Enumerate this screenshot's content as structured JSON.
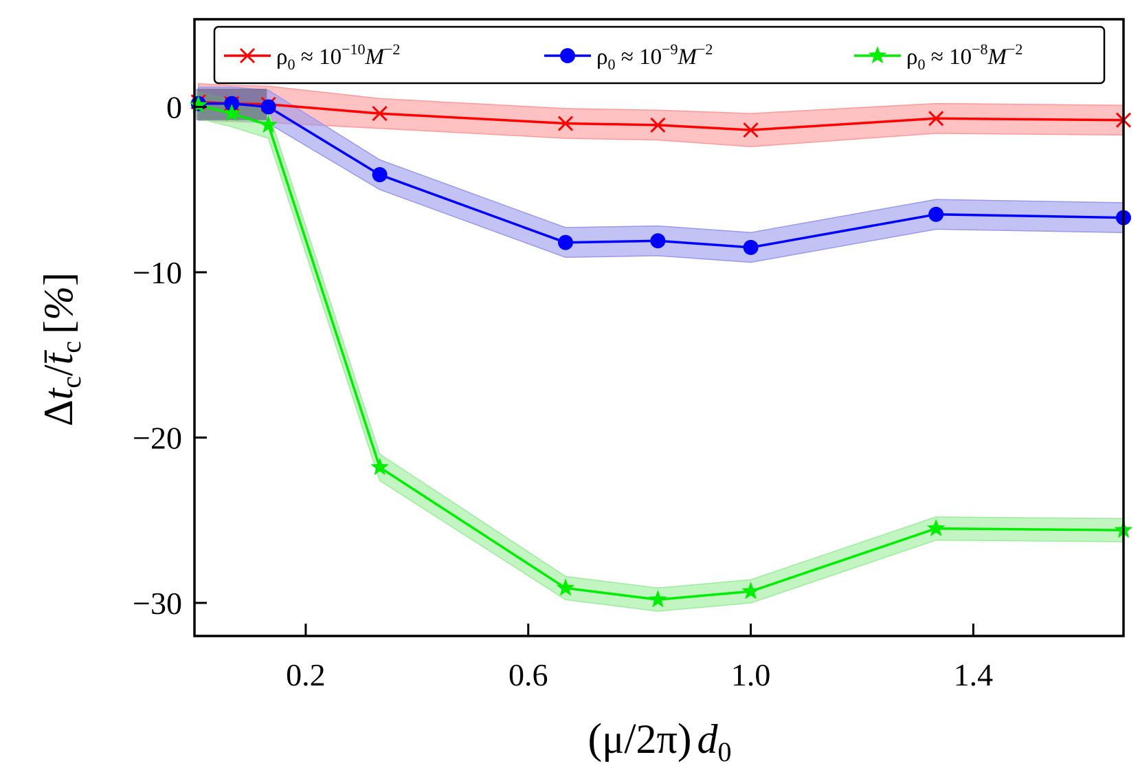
{
  "chart_data": {
    "type": "line",
    "xlabel": "(μ/2π) d₀",
    "ylabel": "Δt_c / t̄_c [%]",
    "xlim": [
      0.0,
      1.67
    ],
    "ylim": [
      -32,
      5.3
    ],
    "xticks": [
      0.2,
      0.6,
      1.0,
      1.4
    ],
    "xtick_labels": [
      "0.2",
      "0.6",
      "1.0",
      "1.4"
    ],
    "yticks": [
      0,
      -10,
      -20,
      -30
    ],
    "ytick_labels": [
      "0",
      "−10",
      "−20",
      "−30"
    ],
    "grid": false,
    "legend_placement": "top, single row, framed",
    "x": [
      0.007,
      0.067,
      0.133,
      0.333,
      0.667,
      0.833,
      1.0,
      1.333,
      1.67
    ],
    "series": [
      {
        "name": "ρ₀ ≈ 10⁻¹⁰ M⁻²",
        "name_base": "ρ",
        "name_sub": "0",
        "name_mid": " ≈ 10",
        "name_exp": "−10",
        "name_unit": "M",
        "name_unit_exp": "−2",
        "marker": "x",
        "color": "#ff0000",
        "band_color": "#ff9999",
        "values": [
          0.3,
          0.2,
          0.15,
          -0.4,
          -1.0,
          -1.1,
          -1.4,
          -0.7,
          -0.8
        ],
        "band": [
          1.1,
          1.1,
          1.1,
          0.9,
          0.9,
          0.9,
          1.0,
          0.9,
          0.9
        ]
      },
      {
        "name": "ρ₀ ≈ 10⁻⁹ M⁻²",
        "name_base": "ρ",
        "name_sub": "0",
        "name_mid": " ≈ 10",
        "name_exp": "−9",
        "name_unit": "M",
        "name_unit_exp": "−2",
        "marker": "o",
        "color": "#0000ff",
        "band_color": "#9999ee",
        "values": [
          0.2,
          0.2,
          0.0,
          -4.1,
          -8.2,
          -8.1,
          -8.5,
          -6.5,
          -6.7
        ],
        "band": [
          1.0,
          1.0,
          1.0,
          0.9,
          0.9,
          0.9,
          0.9,
          0.9,
          0.9
        ]
      },
      {
        "name": "ρ₀ ≈ 10⁻⁸ M⁻²",
        "name_base": "ρ",
        "name_sub": "0",
        "name_mid": " ≈ 10",
        "name_exp": "−8",
        "name_unit": "M",
        "name_unit_exp": "−2",
        "marker": "star",
        "color": "#00ee00",
        "band_color": "#99ee99",
        "values": [
          0.1,
          -0.4,
          -1.1,
          -21.8,
          -29.1,
          -29.8,
          -29.3,
          -25.5,
          -25.6
        ],
        "band": [
          0.8,
          0.8,
          0.8,
          0.8,
          0.7,
          0.7,
          0.7,
          0.7,
          0.7
        ]
      }
    ]
  }
}
